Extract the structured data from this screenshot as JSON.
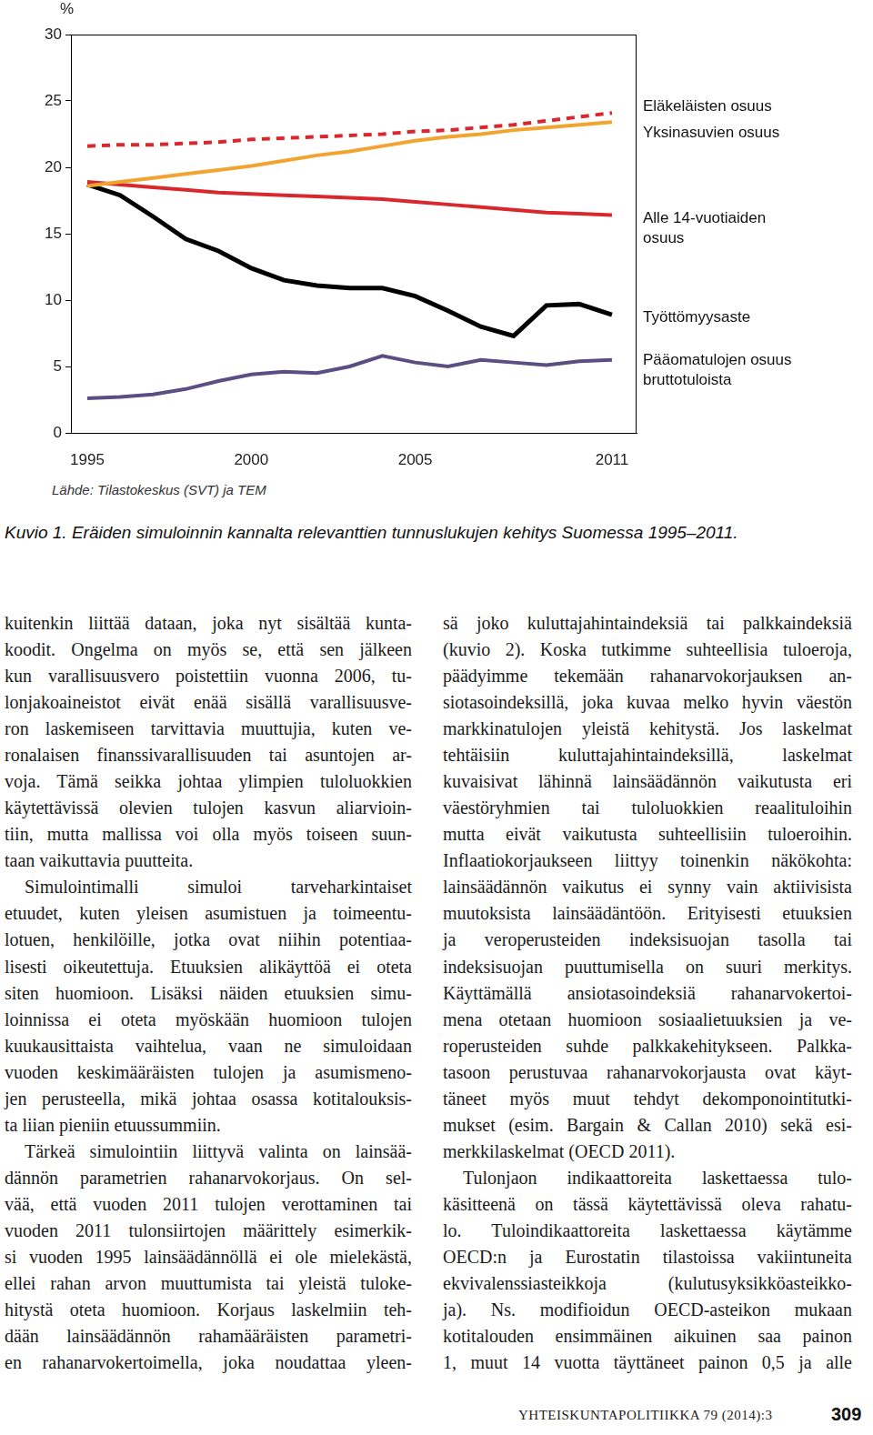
{
  "chart_data": {
    "type": "line",
    "ylabel": "%",
    "x": [
      1995,
      1996,
      1997,
      1998,
      1999,
      2000,
      2001,
      2002,
      2003,
      2004,
      2005,
      2006,
      2007,
      2008,
      2009,
      2010,
      2011
    ],
    "xlim": [
      1994.5,
      2011.75
    ],
    "xticks": [
      1995,
      2000,
      2005,
      2011
    ],
    "ylim": [
      0,
      30
    ],
    "yticks": [
      0,
      5,
      10,
      15,
      20,
      25,
      30
    ],
    "grid": false,
    "series": [
      {
        "name": "Eläkeläisten osuus",
        "color": "#d8282e",
        "line_style": "dashed",
        "values": [
          21.6,
          21.7,
          21.7,
          21.8,
          21.9,
          22.1,
          22.2,
          22.3,
          22.4,
          22.5,
          22.7,
          22.8,
          23.0,
          23.2,
          23.5,
          23.8,
          24.1
        ]
      },
      {
        "name": "Yksinasuvien osuus",
        "color": "#f2a431",
        "line_style": "solid",
        "values": [
          18.6,
          18.9,
          19.2,
          19.5,
          19.8,
          20.1,
          20.5,
          20.9,
          21.2,
          21.6,
          22.0,
          22.3,
          22.5,
          22.8,
          23.0,
          23.2,
          23.4
        ]
      },
      {
        "name": "Alle 14-vuotiaiden osuus",
        "color": "#d8282e",
        "line_style": "solid",
        "values": [
          18.9,
          18.7,
          18.5,
          18.3,
          18.1,
          18.0,
          17.9,
          17.8,
          17.7,
          17.6,
          17.4,
          17.2,
          17.0,
          16.8,
          16.6,
          16.5,
          16.4
        ]
      },
      {
        "name": "Työttömyysaste",
        "color": "#000000",
        "line_style": "solid",
        "values": [
          18.7,
          17.9,
          16.3,
          14.6,
          13.7,
          12.4,
          11.5,
          11.1,
          10.9,
          10.9,
          10.3,
          9.2,
          8.0,
          7.3,
          9.6,
          9.7,
          8.9
        ]
      },
      {
        "name": "Pääomatulojen osuus bruttotuloista",
        "color": "#5a4e82",
        "line_style": "solid",
        "values": [
          2.6,
          2.7,
          2.9,
          3.3,
          3.9,
          4.4,
          4.6,
          4.5,
          5.0,
          5.8,
          5.3,
          5.0,
          5.5,
          5.3,
          5.1,
          5.4,
          5.5
        ]
      }
    ],
    "source": "Lähde: Tilastokeskus (SVT) ja TEM",
    "caption": "Kuvio 1. Eräiden simuloinnin kannalta relevanttien tunnuslukujen kehitys Suomessa 1995–2011."
  },
  "page": {
    "columns": [
      [
        [
          "kuitenkin liittää dataan, joka nyt sisältää kunta-",
          "koodit. Ongelma on myös se, että sen jälkeen",
          "kun varallisuusvero poistettiin vuonna 2006, tu-",
          "lonjakoaineistot eivät enää sisällä varallisuusve-",
          "ron laskemiseen tarvittavia muuttujia, kuten ve-",
          "ronalaisen finanssivarallisuuden tai asuntojen ar-",
          "voja. Tämä seikka johtaa ylimpien tuloluokkien",
          "käytettävissä olevien tulojen kasvun aliarvioin-",
          "tiin, mutta mallissa voi olla myös toiseen suun-",
          "taan vaikuttavia puutteita."
        ],
        [
          "Simulointimalli simuloi tarveharkintaiset",
          "etuudet, kuten yleisen asumistuen ja toimeentu-",
          "lotuen, henkilöille, jotka ovat niihin potentiaa-",
          "lisesti oikeutettuja. Etuuksien alikäyttöä ei oteta",
          "siten huomioon. Lisäksi näiden etuuksien simu-",
          "loinnissa ei oteta myöskään huomioon tulojen",
          "kuukausittaista vaihtelua, vaan ne simuloidaan",
          "vuoden keskimääräisten tulojen ja asumismeno-",
          "jen perusteella, mikä johtaa osassa kotitalouksis-",
          "ta liian pieniin etuussummiin."
        ],
        [
          "Tärkeä simulointiin liittyvä valinta on lainsää-",
          "dännön parametrien rahanarvokorjaus. On sel-",
          "vää, että vuoden 2011 tulojen verottaminen tai",
          "vuoden 2011 tulonsiirtojen määrittely esimerkik-",
          "si vuoden 1995 lainsäädännöllä ei ole mielekästä,",
          "ellei rahan arvon muuttumista tai yleistä tuloke-",
          "hitystä oteta huomioon. Korjaus laskelmiin teh-",
          "dään lainsäädännön rahamääräisten parametri-",
          "en rahanarvokertoimella, joka noudattaa yleen-"
        ]
      ],
      [
        [
          "sä joko kuluttajahintaindeksiä tai palkkaindeksiä",
          "(kuvio 2). Koska tutkimme suhteellisia tuloeroja,",
          "päädyimme tekemään rahanarvokorjauksen an-",
          "siotasoindeksillä, joka kuvaa melko hyvin väestön",
          "markkinatulojen yleistä kehitystä. Jos laskelmat",
          "tehtäisiin kuluttajahintaindeksillä, laskelmat",
          "kuvaisivat lähinnä lainsäädännön vaikutusta eri",
          "väestöryhmien tai tuloluokkien reaalituloihin",
          "mutta eivät vaikutusta suhteellisiin tuloeroihin.",
          "Inflaatiokorjaukseen liittyy toinenkin näkökohta:",
          "lainsäädännön vaikutus ei synny vain aktiivisista",
          "muutoksista lainsäädäntöön. Erityisesti etuuksien",
          "ja veroperusteiden indeksisuojan tasolla tai",
          "indeksisuojan puuttumisella on suuri merkitys.",
          "Käyttämällä ansiotasoindeksiä rahanarvokertoi-",
          "mena otetaan huomioon sosiaalietuuksien ja ve-",
          "roperusteiden suhde palkkakehitykseen. Palkka-",
          "tasoon perustuvaa rahanarvokorjausta ovat käyt-",
          "täneet myös muut tehdyt dekomponointitutki-",
          "mukset (esim. Bargain & Callan 2010) sekä esi-",
          "merkkilaskelmat (OECD 2011)."
        ],
        [
          "Tulonjaon indikaattoreita laskettaessa tulo-",
          "käsitteenä on tässä käytettävissä oleva rahatu-",
          "lo. Tuloindikaattoreita laskettaessa käytämme",
          "OECD:n ja Eurostatin tilastoissa vakiintuneita",
          "ekvivalenssiasteikkoja (kulutusyksikköasteikko-",
          "ja). Ns. modifioidun OECD-asteikon mukaan",
          "kotitalouden ensimmäinen aikuinen saa painon",
          "1, muut 14 vuotta täyttäneet painon 0,5 ja alle"
        ]
      ]
    ],
    "footer": {
      "journal": "YHTEISKUNTAPOLITIIKKA 79 (2014):3",
      "page_number": 309
    }
  }
}
